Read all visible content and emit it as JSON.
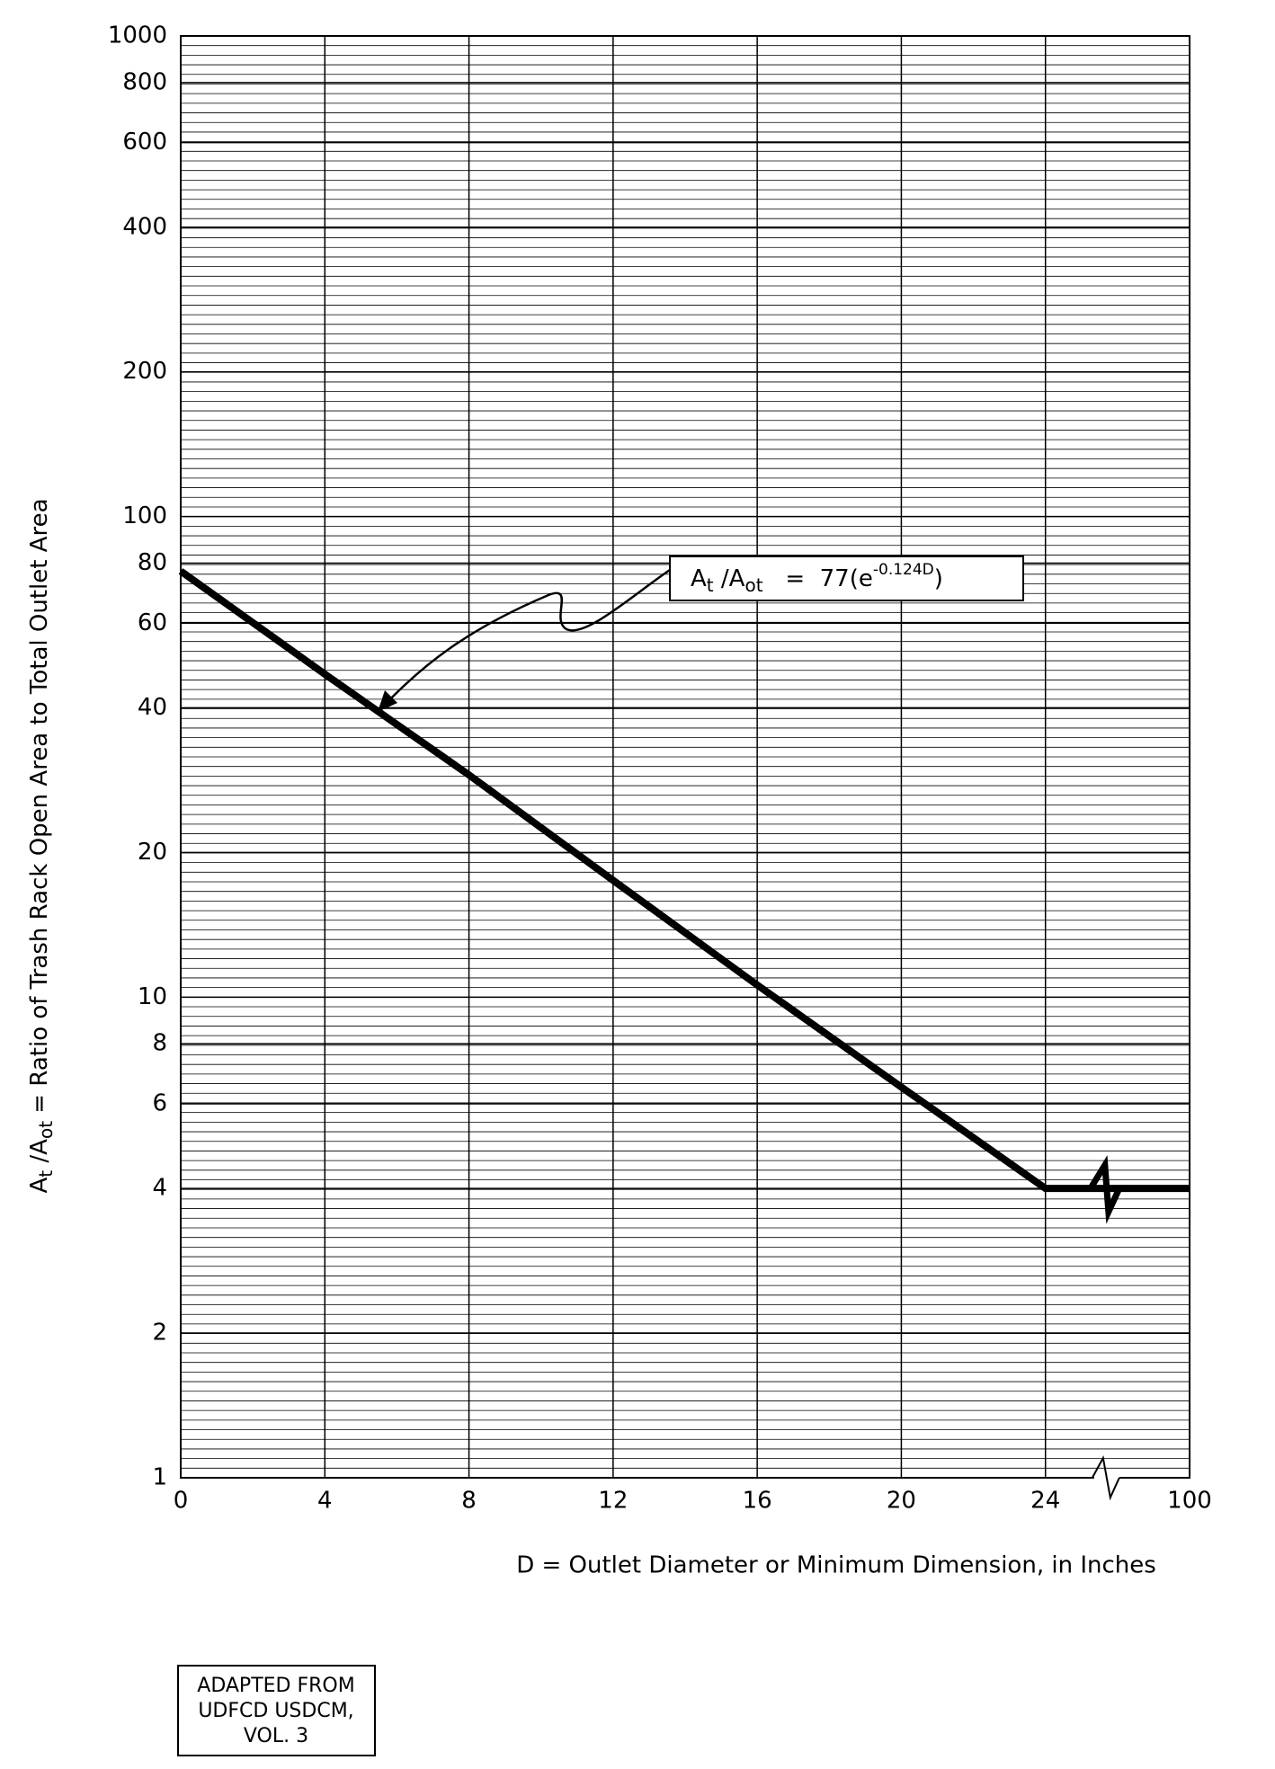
{
  "chart_data": {
    "type": "line",
    "x_label": "D = Outlet Diameter or Minimum Dimension, in Inches",
    "y_label_parts": [
      "A",
      "t",
      " /A",
      "ot",
      "  =  Ratio of Trash Rack Open Area to Total Outlet Area"
    ],
    "equation_parts": [
      "A",
      "t",
      " /A",
      "ot",
      "   =  77(e",
      "-0.124D",
      ")"
    ],
    "source_note": [
      "ADAPTED FROM",
      "UDFCD USDCM,",
      "VOL. 3"
    ],
    "x": [
      0,
      4,
      8,
      12,
      16,
      20,
      24,
      100
    ],
    "series": [
      {
        "name": "At/Aot",
        "color": "#000000",
        "values": [
          77,
          47,
          29,
          17.5,
          10.6,
          6.5,
          4,
          4
        ]
      }
    ],
    "xlim": [
      0,
      100
    ],
    "xticks": [
      0,
      4,
      8,
      12,
      16,
      20,
      24,
      100
    ],
    "ylim": [
      1,
      1000
    ],
    "yticks": [
      1,
      2,
      4,
      6,
      8,
      10,
      20,
      40,
      60,
      80,
      100,
      200,
      400,
      600,
      800,
      1000
    ],
    "y_scale": "log",
    "grid": true
  }
}
